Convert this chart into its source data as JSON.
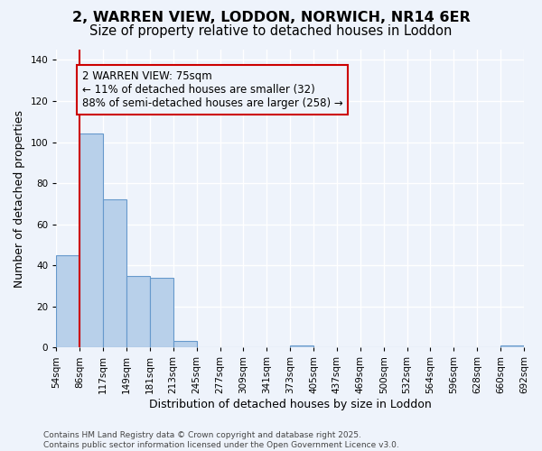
{
  "title1": "2, WARREN VIEW, LODDON, NORWICH, NR14 6ER",
  "title2": "Size of property relative to detached houses in Loddon",
  "xlabel": "Distribution of detached houses by size in Loddon",
  "ylabel": "Number of detached properties",
  "bin_labels": [
    "54sqm",
    "86sqm",
    "117sqm",
    "149sqm",
    "181sqm",
    "213sqm",
    "245sqm",
    "277sqm",
    "309sqm",
    "341sqm",
    "373sqm",
    "405sqm",
    "437sqm",
    "469sqm",
    "500sqm",
    "532sqm",
    "564sqm",
    "596sqm",
    "628sqm",
    "660sqm",
    "692sqm"
  ],
  "bar_values": [
    45,
    104,
    72,
    35,
    34,
    3,
    0,
    0,
    0,
    0,
    1,
    0,
    0,
    0,
    0,
    0,
    0,
    0,
    0,
    1
  ],
  "bar_color": "#b8d0ea",
  "bar_edge_color": "#6699cc",
  "background_color": "#eef3fb",
  "grid_color": "#ffffff",
  "ylim": [
    0,
    145
  ],
  "yticks": [
    0,
    20,
    40,
    60,
    80,
    100,
    120,
    140
  ],
  "property_line_color": "#cc0000",
  "annotation_text": "2 WARREN VIEW: 75sqm\n← 11% of detached houses are smaller (32)\n88% of semi-detached houses are larger (258) →",
  "annotation_box_color": "#cc0000",
  "footer_text": "Contains HM Land Registry data © Crown copyright and database right 2025.\nContains public sector information licensed under the Open Government Licence v3.0.",
  "title_fontsize": 11.5,
  "subtitle_fontsize": 10.5,
  "axis_label_fontsize": 9,
  "tick_fontsize": 7.5,
  "annotation_fontsize": 8.5,
  "footer_fontsize": 6.5
}
